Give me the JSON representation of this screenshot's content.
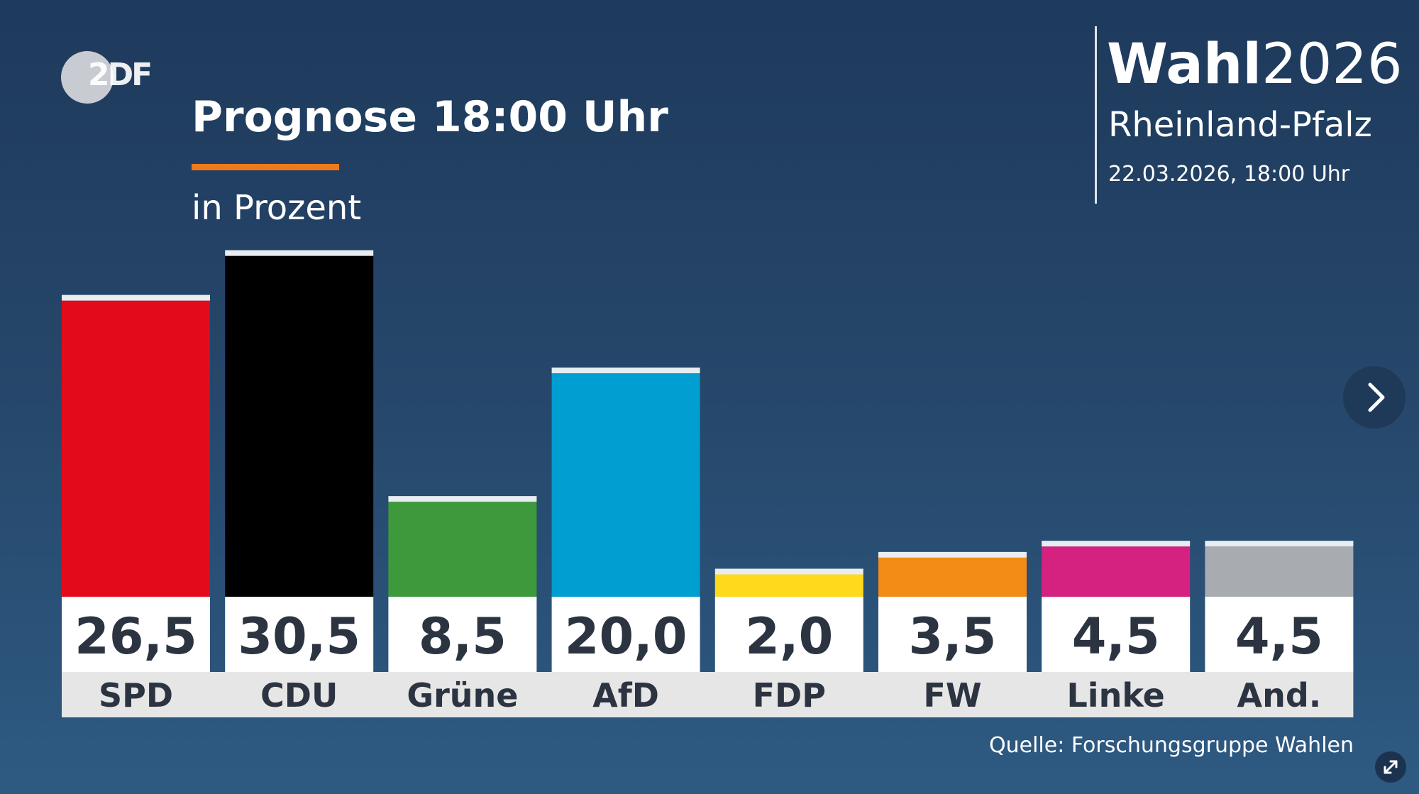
{
  "header": {
    "logo_text": "2DF",
    "title": "Prognose 18:00 Uhr",
    "subtitle": "in Prozent"
  },
  "election": {
    "wahl_word": "Wahl",
    "year": "2026",
    "region": "Rheinland-Pfalz",
    "date": "22.03.2026, 18:00 Uhr"
  },
  "footer": {
    "source": "Quelle: Forschungsgruppe Wahlen"
  },
  "icons": {
    "next": "chevron-right-icon",
    "expand": "expand-icon"
  },
  "colors": {
    "accent": "#f07a1b",
    "SPD": "#e30b1b",
    "CDU": "#000000",
    "Grüne": "#3e993d",
    "AfD": "#009ed1",
    "FDP": "#ffd91c",
    "FW": "#f28c17",
    "Linke": "#d5217f",
    "And.": "#a8abb0"
  },
  "chart_data": {
    "type": "bar",
    "categories": [
      "SPD",
      "CDU",
      "Grüne",
      "AfD",
      "FDP",
      "FW",
      "Linke",
      "And."
    ],
    "values": [
      26.5,
      30.5,
      8.5,
      20.0,
      2.0,
      3.5,
      4.5,
      4.5
    ],
    "value_labels": [
      "26,5",
      "30,5",
      "8,5",
      "20,0",
      "2,0",
      "3,5",
      "4,5",
      "4,5"
    ],
    "colors": [
      "#e30b1b",
      "#000000",
      "#3e993d",
      "#009ed1",
      "#ffd91c",
      "#f28c17",
      "#d5217f",
      "#a8abb0"
    ],
    "title": "Prognose 18:00 Uhr",
    "subtitle": "in Prozent",
    "grid": false,
    "legend": "none"
  }
}
